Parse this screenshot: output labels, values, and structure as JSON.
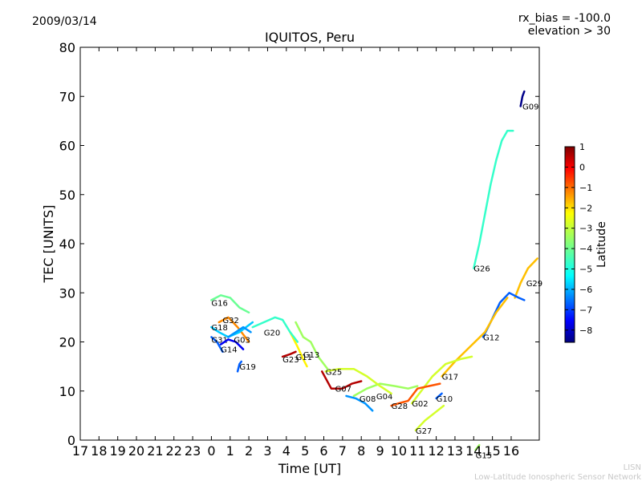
{
  "header": {
    "date": "2009/03/14",
    "title": "IQUITOS, Peru",
    "rx_bias": "rx_bias = -100.0",
    "elevation": "elevation > 30"
  },
  "footer": {
    "line1": "LISN",
    "line2": "Low-Latitude Ionospheric Sensor Network"
  },
  "chart_data": {
    "type": "line",
    "title": "IQUITOS, Peru",
    "xlabel": "Time [UT]",
    "ylabel": "TEC [UNITS]",
    "x_ticks": [
      "17",
      "18",
      "19",
      "20",
      "21",
      "22",
      "23",
      "0",
      "1",
      "2",
      "3",
      "4",
      "5",
      "6",
      "7",
      "8",
      "9",
      "10",
      "11",
      "12",
      "13",
      "14",
      "15",
      "16"
    ],
    "y_ticks": [
      0,
      10,
      20,
      30,
      40,
      50,
      60,
      70,
      80
    ],
    "ylim": [
      0,
      80
    ],
    "xlim_hours": [
      17,
      41.5
    ],
    "grid": false,
    "colorbar": {
      "label": "Latitude",
      "ticks": [
        "1",
        "0",
        "−1",
        "−2",
        "−3",
        "−4",
        "−5",
        "−6",
        "−7",
        "−8"
      ],
      "range": [
        -8.6,
        1
      ],
      "colors": [
        "#00007f",
        "#0000ff",
        "#007fff",
        "#00ffff",
        "#7fff7f",
        "#ffff00",
        "#ff7f00",
        "#ff0000",
        "#7f0000"
      ]
    },
    "series": [
      {
        "name": "G09",
        "lat": -8.5,
        "label_at": [
          40.6,
          68
        ],
        "points": [
          [
            40.5,
            68
          ],
          [
            40.6,
            70
          ],
          [
            40.7,
            71
          ]
        ]
      },
      {
        "name": "G26",
        "lat": -4.5,
        "label_at": [
          38.0,
          35
        ],
        "points": [
          [
            38.0,
            35
          ],
          [
            38.3,
            40
          ],
          [
            38.6,
            46
          ],
          [
            38.9,
            52
          ],
          [
            39.2,
            57
          ],
          [
            39.5,
            61
          ],
          [
            39.8,
            63
          ],
          [
            40.1,
            63
          ]
        ]
      },
      {
        "name": "G29",
        "lat": -2.0,
        "label_at": [
          40.8,
          32
        ],
        "points": [
          [
            40.2,
            29
          ],
          [
            40.5,
            32
          ],
          [
            40.9,
            35
          ],
          [
            41.4,
            37
          ]
        ]
      },
      {
        "name": "G12",
        "lat": -6.5,
        "label_at": [
          38.5,
          21
        ],
        "points": [
          [
            38.5,
            21
          ],
          [
            38.9,
            24
          ],
          [
            39.4,
            28
          ],
          [
            39.9,
            30
          ],
          [
            40.4,
            29
          ],
          [
            40.7,
            28.5
          ]
        ]
      },
      {
        "name": "G17",
        "lat": -2.0,
        "label_at": [
          36.3,
          13
        ],
        "points": [
          [
            36.3,
            13
          ],
          [
            37.0,
            16
          ],
          [
            37.8,
            19
          ],
          [
            38.6,
            22
          ],
          [
            39.2,
            26
          ],
          [
            39.8,
            29
          ]
        ]
      },
      {
        "name": "G15",
        "lat": -3.5,
        "label_at": [
          38.1,
          -3
        ],
        "points": [
          [
            38.1,
            -2
          ],
          [
            38.3,
            -1
          ]
        ]
      },
      {
        "name": "G10",
        "lat": -6.5,
        "label_at": [
          36.0,
          8.5
        ],
        "points": [
          [
            36.0,
            8.5
          ],
          [
            36.3,
            9.5
          ]
        ]
      },
      {
        "name": "G27",
        "lat": -3.0,
        "label_at": [
          34.9,
          2
        ],
        "points": [
          [
            34.9,
            2
          ],
          [
            35.4,
            4
          ],
          [
            35.9,
            5.5
          ],
          [
            36.4,
            7
          ]
        ]
      },
      {
        "name": "G02",
        "lat": -3.0,
        "label_at": [
          34.7,
          7.5
        ],
        "points": [
          [
            34.7,
            7.5
          ],
          [
            35.2,
            10
          ],
          [
            35.8,
            13
          ],
          [
            36.5,
            15.5
          ],
          [
            37.3,
            16.5
          ],
          [
            37.9,
            17
          ]
        ]
      },
      {
        "name": "G28",
        "lat": -1.0,
        "label_at": [
          33.6,
          7
        ],
        "points": [
          [
            33.6,
            7
          ],
          [
            34.0,
            7.5
          ],
          [
            34.5,
            8
          ],
          [
            35.0,
            10.5
          ],
          [
            35.6,
            11
          ],
          [
            36.2,
            11.5
          ]
        ]
      },
      {
        "name": "G04",
        "lat": -3.5,
        "label_at": [
          32.8,
          9
        ],
        "points": [
          [
            31.6,
            9
          ],
          [
            32.3,
            10.5
          ],
          [
            33.0,
            11.5
          ],
          [
            33.8,
            11
          ],
          [
            34.5,
            10.5
          ],
          [
            35.0,
            11
          ]
        ]
      },
      {
        "name": "G08",
        "lat": -6.0,
        "label_at": [
          31.9,
          8.5
        ],
        "points": [
          [
            31.2,
            9
          ],
          [
            31.7,
            8.5
          ],
          [
            32.2,
            7.5
          ],
          [
            32.6,
            6
          ]
        ]
      },
      {
        "name": "G07",
        "lat": 0.5,
        "label_at": [
          30.6,
          10.5
        ],
        "points": [
          [
            29.9,
            14
          ],
          [
            30.4,
            10.5
          ],
          [
            31.0,
            10.5
          ],
          [
            31.5,
            11.5
          ],
          [
            32.0,
            12
          ]
        ]
      },
      {
        "name": "G25",
        "lat": -3.0,
        "label_at": [
          30.1,
          14
        ],
        "points": [
          [
            30.1,
            14
          ],
          [
            30.8,
            14.5
          ],
          [
            31.6,
            14.5
          ],
          [
            32.3,
            13
          ],
          [
            33.0,
            11
          ],
          [
            33.6,
            9.5
          ]
        ]
      },
      {
        "name": "G13",
        "lat": -3.5,
        "label_at": [
          28.9,
          17.5
        ],
        "points": [
          [
            28.5,
            24
          ],
          [
            28.9,
            21
          ],
          [
            29.3,
            20
          ],
          [
            29.7,
            17
          ],
          [
            30.2,
            14.5
          ]
        ]
      },
      {
        "name": "G11",
        "lat": -2.5,
        "label_at": [
          28.5,
          17
        ],
        "points": [
          [
            28.2,
            22
          ],
          [
            28.6,
            19
          ],
          [
            28.9,
            16.5
          ],
          [
            29.1,
            15
          ]
        ]
      },
      {
        "name": "G20",
        "lat": -4.5,
        "label_at": [
          26.8,
          22
        ],
        "points": [
          [
            26.2,
            23
          ],
          [
            26.8,
            24
          ],
          [
            27.4,
            25
          ],
          [
            27.8,
            24.5
          ],
          [
            28.2,
            22
          ],
          [
            28.6,
            20
          ]
        ]
      },
      {
        "name": "G23",
        "lat": 0.5,
        "label_at": [
          27.8,
          16.5
        ],
        "points": [
          [
            27.8,
            17
          ],
          [
            28.2,
            17.5
          ],
          [
            28.5,
            18
          ]
        ]
      },
      {
        "name": "G19",
        "lat": -6.5,
        "label_at": [
          25.5,
          15
        ],
        "points": [
          [
            25.4,
            14
          ],
          [
            25.5,
            15.5
          ],
          [
            25.6,
            16
          ]
        ]
      },
      {
        "name": "G32",
        "lat": -1.5,
        "label_at": [
          24.6,
          24.5
        ],
        "points": [
          [
            24.4,
            24
          ],
          [
            24.9,
            25
          ],
          [
            25.4,
            23
          ],
          [
            25.8,
            21
          ],
          [
            26.0,
            20
          ]
        ]
      },
      {
        "name": "G18",
        "lat": -5.5,
        "label_at": [
          24.0,
          23
        ],
        "points": [
          [
            24.0,
            23
          ],
          [
            24.4,
            22
          ],
          [
            24.9,
            21
          ],
          [
            25.5,
            22
          ],
          [
            26.2,
            24
          ]
        ]
      },
      {
        "name": "G16",
        "lat": -4.0,
        "label_at": [
          24.0,
          28
        ],
        "points": [
          [
            24.0,
            28.5
          ],
          [
            24.5,
            29.5
          ],
          [
            25.0,
            29
          ],
          [
            25.5,
            27
          ],
          [
            26.0,
            26
          ]
        ]
      },
      {
        "name": "G31",
        "lat": -6.5,
        "label_at": [
          24.0,
          20.5
        ],
        "points": [
          [
            24.0,
            21
          ],
          [
            24.3,
            20
          ],
          [
            24.6,
            18
          ]
        ]
      },
      {
        "name": "G14",
        "lat": -7.5,
        "label_at": [
          24.5,
          18.5
        ],
        "points": [
          [
            24.5,
            19.5
          ],
          [
            24.9,
            20.5
          ],
          [
            25.3,
            20
          ],
          [
            25.7,
            18.5
          ]
        ]
      },
      {
        "name": "G03",
        "lat": -6.0,
        "label_at": [
          25.2,
          20.5
        ],
        "points": [
          [
            24.9,
            21
          ],
          [
            25.3,
            22
          ],
          [
            25.7,
            23
          ],
          [
            26.1,
            22
          ]
        ]
      }
    ]
  }
}
